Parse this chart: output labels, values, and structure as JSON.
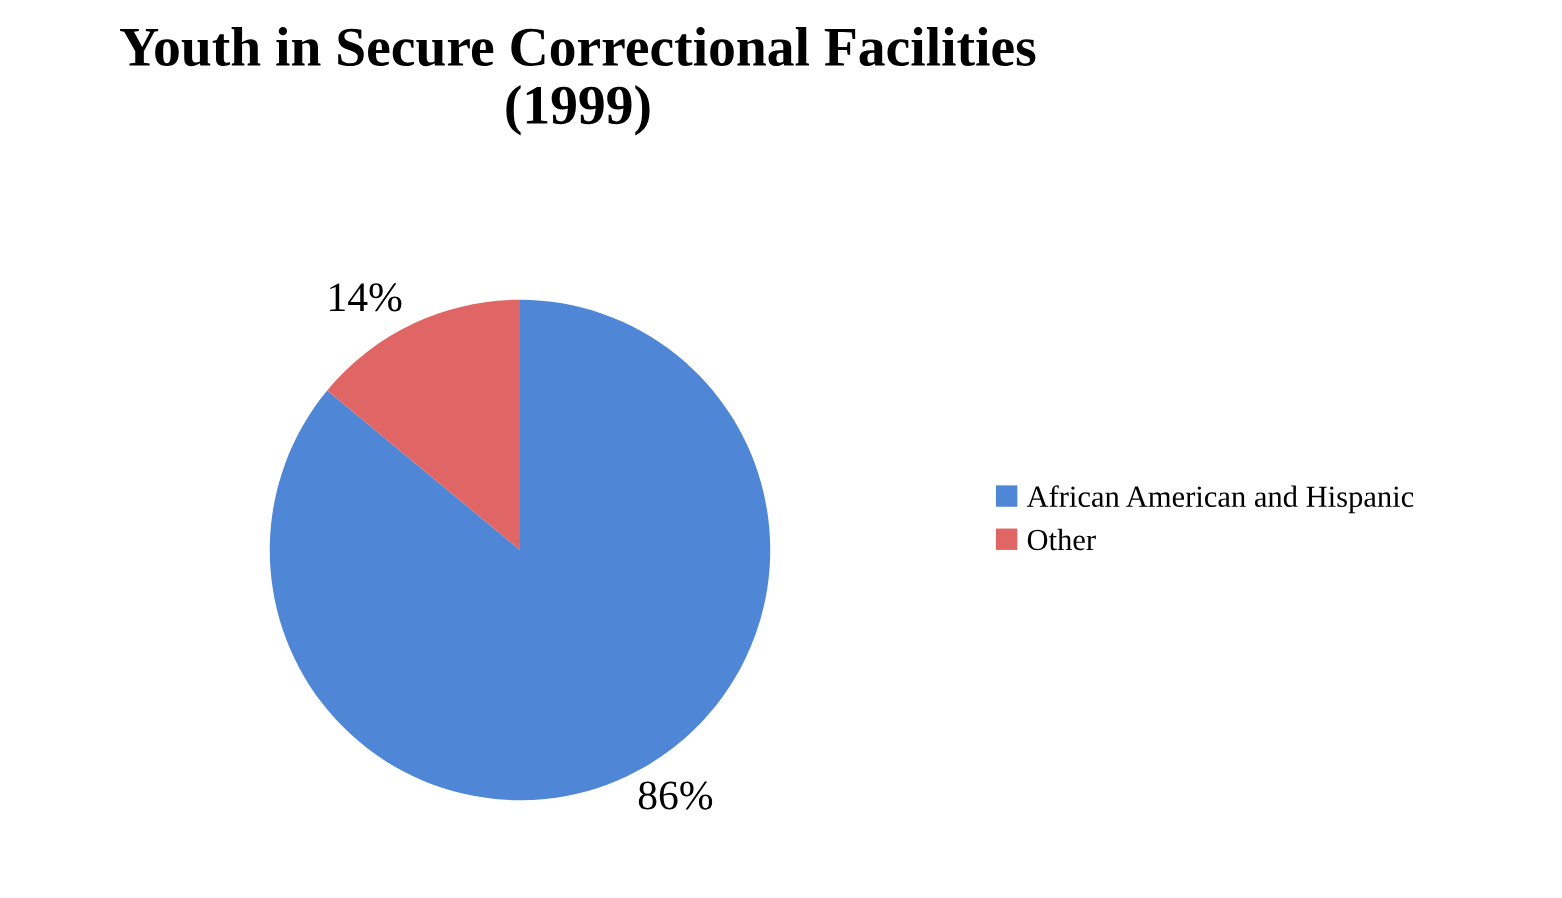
{
  "chart_data": {
    "type": "pie",
    "title": "Youth in Secure Correctional Facilities\n(1999)",
    "categories": [
      "African American and Hispanic",
      "Other"
    ],
    "values": [
      86,
      14
    ],
    "colors": [
      "#4f86d6",
      "#e06666"
    ],
    "value_labels": [
      "86%",
      "14%"
    ],
    "legend": "right"
  }
}
